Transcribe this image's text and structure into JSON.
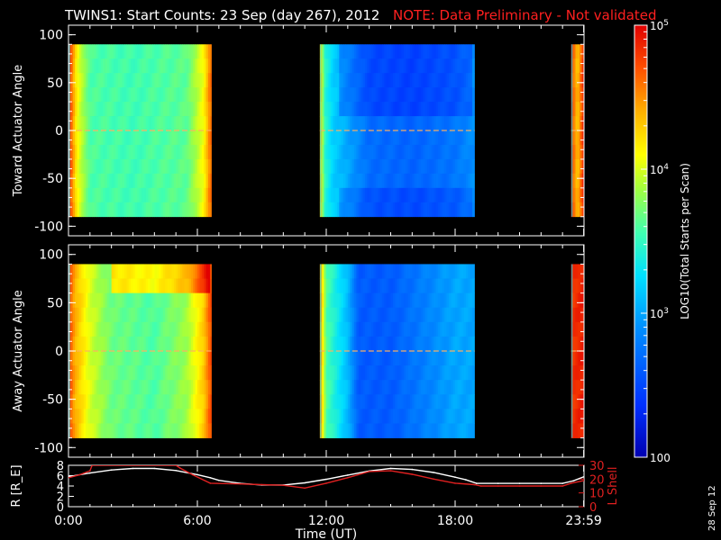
{
  "header": {
    "title": "TWINS1: Start Counts: 23 Sep (day 267), 2012",
    "note": "NOTE: Data Preliminary - Not validated"
  },
  "side_date": "28 Sep 12",
  "colors": {
    "background": "#000000",
    "axes": "#ffffff",
    "note": "#ff2020",
    "r_line": "#ffffff",
    "lshell_line": "#e02020",
    "missing_data": "#000000"
  },
  "chart_data": [
    {
      "type": "heatmap",
      "panel": "top",
      "ylabel": "Toward Actuator Angle",
      "ylim": [
        -110,
        110
      ],
      "yticks": [
        -100,
        -50,
        0,
        50,
        100
      ],
      "y_data_range": [
        -90,
        90
      ],
      "xlim_hours": [
        0,
        24
      ],
      "data_intervals_hours": [
        [
          0,
          6.65
        ],
        [
          11.7,
          18.9
        ],
        [
          23.4,
          24
        ]
      ],
      "log10_counts_profile": {
        "hours": [
          0.0,
          0.4,
          1.0,
          3.0,
          5.5,
          6.3,
          6.6,
          11.7,
          11.9,
          12.3,
          13.0,
          14.0,
          16.0,
          18.0,
          18.9,
          23.4,
          23.7,
          24.0
        ],
        "values": [
          4.9,
          4.1,
          3.6,
          3.55,
          3.65,
          4.1,
          4.6,
          4.5,
          3.5,
          3.2,
          3.0,
          2.7,
          2.65,
          2.75,
          2.9,
          4.8,
          4.3,
          4.9
        ]
      },
      "low_count_band_degrees": [
        20,
        90
      ],
      "notch_at_degrees": 0
    },
    {
      "type": "heatmap",
      "panel": "middle",
      "ylabel": "Away Actuator Angle",
      "ylim": [
        -110,
        110
      ],
      "yticks": [
        -100,
        -50,
        0,
        50,
        100
      ],
      "y_data_range": [
        -90,
        90
      ],
      "xlim_hours": [
        0,
        24
      ],
      "data_intervals_hours": [
        [
          0,
          6.65
        ],
        [
          11.7,
          18.9
        ],
        [
          23.4,
          24
        ]
      ],
      "log10_counts_profile": {
        "hours": [
          0.0,
          0.3,
          1.0,
          2.0,
          4.0,
          5.5,
          6.3,
          6.6,
          11.7,
          12.0,
          13.0,
          13.5,
          15.0,
          16.5,
          18.0,
          18.9,
          23.4,
          24.0
        ],
        "values": [
          4.8,
          4.4,
          4.0,
          3.7,
          3.6,
          3.85,
          4.3,
          4.7,
          4.6,
          3.6,
          3.1,
          2.6,
          2.6,
          2.8,
          3.0,
          3.0,
          4.8,
          4.9
        ],
        "high_region_hours": [
          2.0,
          6.5
        ],
        "high_region_degrees": [
          60,
          90
        ]
      },
      "notch_at_degrees": 0
    },
    {
      "type": "line",
      "panel": "bottom",
      "xlabel": "Time (UT)",
      "xlim_hours": [
        0,
        24
      ],
      "xticks_hours": [
        0,
        6,
        12,
        18,
        23.983
      ],
      "xtick_labels": [
        "0:00",
        "6:00",
        "12:00",
        "18:00",
        "23:59"
      ],
      "left_axis": {
        "label": "R [R_E]",
        "ylim": [
          0,
          8
        ],
        "yticks": [
          0,
          2,
          4,
          6,
          8
        ]
      },
      "right_axis": {
        "label": "L Shell",
        "ylim": [
          0,
          30
        ],
        "yticks": [
          0,
          10,
          20,
          30
        ]
      },
      "series": [
        {
          "axis": "left",
          "x": [
            0,
            1,
            2,
            3,
            4,
            5,
            6,
            6.6,
            7,
            8,
            9,
            10,
            11,
            12,
            13,
            14,
            15,
            16,
            17,
            18,
            18.5,
            19,
            20,
            21,
            22,
            23,
            23.5,
            24
          ],
          "y": [
            5.8,
            6.5,
            7.1,
            7.4,
            7.4,
            7.0,
            6.2,
            5.6,
            5.1,
            4.5,
            4.2,
            4.2,
            4.6,
            5.3,
            6.1,
            6.9,
            7.4,
            7.2,
            6.6,
            5.7,
            5.2,
            4.5,
            4.5,
            4.5,
            4.5,
            4.5,
            5.0,
            5.8
          ]
        },
        {
          "axis": "right",
          "x": [
            0,
            0.5,
            1.0,
            1.1,
            5.0,
            5.2,
            5.8,
            6.6,
            8,
            9,
            10,
            11,
            12,
            13,
            14,
            15,
            16,
            17,
            18,
            18.9,
            19.2,
            20,
            21,
            22,
            23,
            23.4,
            24
          ],
          "y": [
            21,
            23,
            26,
            30,
            30,
            28,
            23,
            17,
            16.5,
            16,
            15.5,
            13.5,
            17,
            21,
            25.5,
            26,
            23.5,
            20,
            17,
            16,
            15,
            15,
            15,
            15,
            15,
            17,
            19
          ]
        }
      ]
    },
    {
      "type": "colorbar",
      "label": "LOG10(Total Starts per Scan)",
      "scale": "log",
      "range": [
        100,
        100000
      ],
      "ticks": [
        {
          "value": 100000,
          "base": "10",
          "exp": "5"
        },
        {
          "value": 10000,
          "base": "10",
          "exp": "4"
        },
        {
          "value": 1000,
          "base": "10",
          "exp": "3"
        },
        {
          "value": 100,
          "text": "100"
        }
      ]
    }
  ]
}
